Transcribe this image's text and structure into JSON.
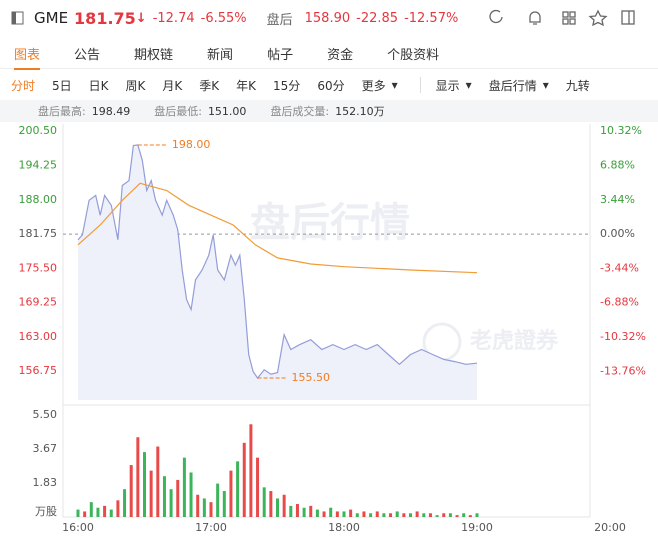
{
  "header": {
    "symbol": "GME",
    "price": "181.75",
    "change": "-12.74",
    "change_pct": "-6.55%",
    "after_label": "盘后",
    "after_price": "158.90",
    "after_change": "-22.85",
    "after_change_pct": "-12.57%"
  },
  "tabs": [
    "图表",
    "公告",
    "期权链",
    "新闻",
    "帖子",
    "资金",
    "个股资料"
  ],
  "toolbar": [
    "分时",
    "5日",
    "日K",
    "周K",
    "月K",
    "季K",
    "年K",
    "15分",
    "60分",
    "更多"
  ],
  "toolbar_right": [
    "显示",
    "盘后行情",
    "九转"
  ],
  "stats": [
    {
      "label": "盘后最高:",
      "value": "198.49"
    },
    {
      "label": "盘后最低:",
      "value": "151.00"
    },
    {
      "label": "盘后成交量:",
      "value": "152.10万"
    }
  ],
  "chart_data": {
    "type": "line",
    "prev_close": 181.75,
    "xlim": [
      "16:00",
      "20:00"
    ],
    "xticks": [
      "16:00",
      "17:00",
      "18:00",
      "19:00",
      "20:00"
    ],
    "ylim": [
      151.5,
      202
    ],
    "yticks": [
      {
        "value": 200.5,
        "label": "200.50"
      },
      194.25,
      {
        "value": 188,
        "label": "188.00"
      },
      181.75,
      {
        "value": 175.5,
        "label": "175.50"
      },
      169.25,
      {
        "value": 163,
        "label": "163.00"
      },
      156.75
    ],
    "y2lim": [
      -16.64,
      11.14
    ],
    "y2ticks": [
      {
        "value": 10.32,
        "label": "10.32%"
      },
      {
        "value": 6.88,
        "label": "6.88%"
      },
      {
        "value": 3.44,
        "label": "3.44%"
      },
      {
        "value": 0,
        "label": "0.00%"
      },
      {
        "value": -3.44,
        "label": "-3.44%"
      },
      {
        "value": -6.88,
        "label": "-6.88%"
      },
      {
        "value": -10.32,
        "label": "-10.32%"
      },
      {
        "value": -13.76,
        "label": "-13.76%"
      }
    ],
    "series": [
      {
        "color": "#939dd8",
        "fill": "#eef0fa",
        "x": [
          "16:00",
          "16:02",
          "16:05",
          "16:08",
          "16:10",
          "16:12",
          "16:15",
          "16:18",
          "16:20",
          "16:23",
          "16:25",
          "16:27",
          "16:29",
          "16:31",
          "16:33",
          "16:35",
          "16:38",
          "16:40",
          "16:43",
          "16:45",
          "16:47",
          "16:49",
          "16:51",
          "16:53",
          "16:56",
          "16:59",
          "17:01",
          "17:03",
          "17:06",
          "17:09",
          "17:11",
          "17:13",
          "17:15",
          "17:17",
          "17:19",
          "17:21",
          "17:24",
          "17:27",
          "17:30",
          "17:33",
          "17:36",
          "17:40",
          "17:45",
          "17:50",
          "17:55",
          "18:00",
          "18:05",
          "18:10",
          "18:15",
          "18:20",
          "18:25",
          "18:30",
          "18:35",
          "18:40",
          "18:45",
          "18:50",
          "18:55",
          "19:00"
        ],
        "values": [
          180.7,
          181.6,
          187.9,
          188.8,
          185.2,
          188.8,
          187.0,
          180.7,
          190.6,
          191.5,
          197.9,
          198.0,
          195.2,
          189.7,
          191.5,
          187.9,
          185.2,
          187.9,
          185.2,
          182.5,
          175.2,
          169.8,
          168.0,
          173.4,
          175.2,
          177.9,
          181.6,
          175.2,
          173.4,
          177.9,
          176.1,
          177.9,
          169.8,
          159.8,
          156.7,
          155.5,
          157.0,
          156.2,
          156.5,
          163.4,
          160.7,
          161.6,
          162.5,
          160.7,
          161.6,
          160.7,
          161.6,
          160.7,
          161.6,
          159.8,
          158.0,
          159.8,
          160.7,
          159.8,
          158.9,
          158.5,
          158.0,
          158.2
        ]
      },
      {
        "color": "#f29b38",
        "x": [
          "16:00",
          "16:10",
          "16:20",
          "16:28",
          "16:40",
          "16:50",
          "17:00",
          "17:10",
          "17:20",
          "17:30",
          "17:45",
          "18:00",
          "18:30",
          "19:00"
        ],
        "values": [
          179.8,
          183.4,
          187.9,
          191.0,
          189.7,
          187.0,
          185.2,
          183.4,
          179.8,
          177.4,
          176.3,
          175.8,
          175.2,
          174.7
        ]
      }
    ],
    "annotations": [
      {
        "x": "16:27",
        "value": 198,
        "label": "198.00"
      },
      {
        "x": "17:21",
        "value": 155.5,
        "label": "155.50"
      }
    ],
    "watermarks": [
      "盘后行情",
      "老虎證券"
    ],
    "volume": {
      "type": "bar",
      "unit_label": "万股",
      "ylim": [
        0,
        5.5
      ],
      "yticks": [
        {
          "value": 5.5,
          "label": "5.50"
        },
        3.67,
        1.83
      ],
      "x": [
        "16:00",
        "16:03",
        "16:06",
        "16:09",
        "16:12",
        "16:15",
        "16:18",
        "16:21",
        "16:24",
        "16:27",
        "16:30",
        "16:33",
        "16:36",
        "16:39",
        "16:42",
        "16:45",
        "16:48",
        "16:51",
        "16:54",
        "16:57",
        "17:00",
        "17:03",
        "17:06",
        "17:09",
        "17:12",
        "17:15",
        "17:18",
        "17:21",
        "17:24",
        "17:27",
        "17:30",
        "17:33",
        "17:36",
        "17:39",
        "17:42",
        "17:45",
        "17:48",
        "17:51",
        "17:54",
        "17:57",
        "18:00",
        "18:03",
        "18:06",
        "18:09",
        "18:12",
        "18:15",
        "18:18",
        "18:21",
        "18:24",
        "18:27",
        "18:30",
        "18:33",
        "18:36",
        "18:39",
        "18:42",
        "18:45",
        "18:48",
        "18:51",
        "18:54",
        "18:57",
        "19:00"
      ],
      "values": [
        0.4,
        0.3,
        0.8,
        0.5,
        0.6,
        0.4,
        0.9,
        1.5,
        2.8,
        4.3,
        3.5,
        2.5,
        3.8,
        2.2,
        1.5,
        2.0,
        3.2,
        2.4,
        1.2,
        1.0,
        0.8,
        1.8,
        1.4,
        2.5,
        3.0,
        4.0,
        5.0,
        3.2,
        1.6,
        1.4,
        1.0,
        1.2,
        0.6,
        0.7,
        0.5,
        0.6,
        0.4,
        0.3,
        0.5,
        0.3,
        0.3,
        0.4,
        0.2,
        0.3,
        0.2,
        0.3,
        0.2,
        0.2,
        0.3,
        0.2,
        0.2,
        0.3,
        0.2,
        0.2,
        0.1,
        0.2,
        0.2,
        0.1,
        0.2,
        0.1,
        0.2
      ],
      "colors": [
        "#3cb55a",
        "#e84a4a",
        "#3cb55a",
        "#3cb55a",
        "#e84a4a",
        "#3cb55a",
        "#e84a4a",
        "#3cb55a",
        "#e84a4a",
        "#e84a4a",
        "#3cb55a",
        "#e84a4a",
        "#e84a4a",
        "#3cb55a",
        "#3cb55a",
        "#e84a4a",
        "#3cb55a",
        "#3cb55a",
        "#e84a4a",
        "#3cb55a",
        "#e84a4a",
        "#3cb55a",
        "#3cb55a",
        "#e84a4a",
        "#3cb55a",
        "#e84a4a",
        "#e84a4a",
        "#e84a4a",
        "#3cb55a",
        "#e84a4a",
        "#3cb55a",
        "#e84a4a",
        "#3cb55a",
        "#e84a4a",
        "#3cb55a",
        "#e84a4a",
        "#3cb55a",
        "#e84a4a",
        "#3cb55a",
        "#e84a4a",
        "#3cb55a",
        "#e84a4a",
        "#3cb55a",
        "#e84a4a",
        "#3cb55a",
        "#e84a4a",
        "#3cb55a",
        "#e84a4a",
        "#3cb55a",
        "#e84a4a",
        "#3cb55a",
        "#e84a4a",
        "#3cb55a",
        "#e84a4a",
        "#3cb55a",
        "#e84a4a",
        "#3cb55a",
        "#e84a4a",
        "#3cb55a",
        "#e84a4a",
        "#3cb55a"
      ]
    }
  }
}
